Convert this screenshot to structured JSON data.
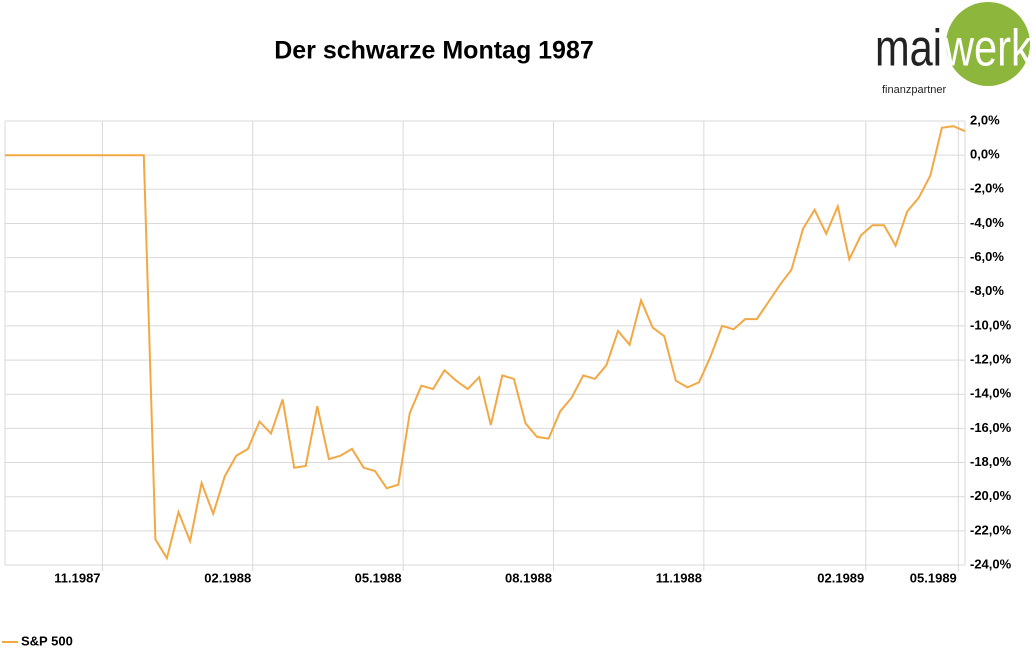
{
  "chart_data": {
    "type": "line",
    "title": "Der schwarze Montag 1987",
    "categories": [
      null,
      null,
      null,
      null,
      null,
      null,
      "11.1987",
      null,
      null,
      null,
      null,
      null,
      null,
      null,
      null,
      null,
      null,
      null,
      null,
      "02.1988",
      null,
      null,
      null,
      null,
      null,
      null,
      null,
      null,
      null,
      null,
      null,
      null,
      "05.1988",
      null,
      null,
      null,
      null,
      null,
      null,
      null,
      null,
      null,
      null,
      null,
      null,
      "08.1988",
      null,
      null,
      null,
      null,
      null,
      null,
      null,
      null,
      null,
      null,
      null,
      null,
      "11.1988",
      null,
      null,
      null,
      null,
      null,
      null,
      null,
      null,
      null,
      null,
      null,
      null,
      null,
      "02.1989",
      null,
      null,
      null,
      null,
      null,
      null,
      null,
      "05.1989",
      null,
      null,
      null
    ],
    "series": [
      {
        "name": "S&P 500",
        "color": "#f2a845",
        "values": [
          0,
          0,
          0,
          0,
          0,
          0,
          0,
          0,
          0,
          0,
          0,
          0,
          0,
          -22.5,
          -23.6,
          -20.9,
          -22.6,
          -19.2,
          -21.0,
          -18.8,
          -17.6,
          -17.2,
          -15.6,
          -16.3,
          -14.3,
          -18.3,
          -18.2,
          -14.7,
          -17.8,
          -17.6,
          -17.2,
          -18.3,
          -18.5,
          -19.5,
          -19.3,
          -15.1,
          -13.5,
          -13.7,
          -12.6,
          -13.2,
          -13.7,
          -13.0,
          -15.8,
          -12.9,
          -13.1,
          -15.7,
          -16.5,
          -16.6,
          -15.0,
          -14.2,
          -12.9,
          -13.1,
          -12.3,
          -10.3,
          -11.1,
          -8.5,
          -10.1,
          -10.6,
          -13.2,
          -13.6,
          -13.3,
          -11.8,
          -10.0,
          -10.2,
          -9.6,
          -9.6,
          -8.6,
          -7.6,
          -6.7,
          -4.3,
          -3.2,
          -4.6,
          -3.0,
          -6.1,
          -4.7,
          -4.1,
          -4.1,
          -5.3,
          -3.3,
          -2.5,
          -1.2,
          1.6,
          1.7,
          1.4
        ]
      }
    ],
    "ylim": [
      -24,
      2
    ],
    "yticks": [
      {
        "value": -24,
        "label": "-24,0%"
      },
      {
        "value": -22,
        "label": "-22,0%"
      },
      {
        "value": -20,
        "label": "-20,0%"
      },
      {
        "value": -18,
        "label": "-18,0%"
      },
      {
        "value": -16,
        "label": "-16,0%"
      },
      {
        "value": -14,
        "label": "-14,0%"
      },
      {
        "value": -12,
        "label": "-12,0%"
      },
      {
        "value": -10,
        "label": "-10,0%"
      },
      {
        "value": -8,
        "label": "-8,0%"
      },
      {
        "value": -6,
        "label": "-6,0%"
      },
      {
        "value": -4,
        "label": "-4,0%"
      },
      {
        "value": -2,
        "label": "-2,0%"
      },
      {
        "value": 0,
        "label": "0,0%"
      },
      {
        "value": 2,
        "label": "2,0%"
      }
    ],
    "grid": true,
    "legend": "bottom-left"
  },
  "logo": {
    "left": "mai",
    "right": "werk",
    "tagline": "finanzpartner"
  }
}
